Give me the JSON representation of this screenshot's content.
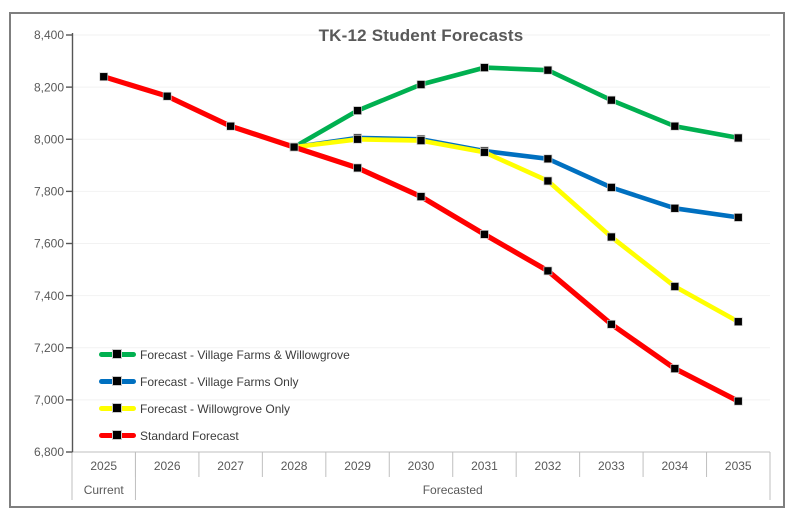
{
  "window": {
    "background_color": "#FFFFFF",
    "frame_border_color": "#7F7F7F"
  },
  "chart_data": {
    "type": "line",
    "title": "TK-12 Student Forecasts",
    "categories": [
      "2025",
      "2026",
      "2027",
      "2028",
      "2029",
      "2030",
      "2031",
      "2032",
      "2033",
      "2034",
      "2035"
    ],
    "x_axis_groups": [
      {
        "label": "Current",
        "start_index": 0,
        "end_index": 0
      },
      {
        "label": "Forecasted",
        "start_index": 1,
        "end_index": 10
      }
    ],
    "series": [
      {
        "name": "Forecast - Village Farms & Willowgrove",
        "color": "#00B050",
        "values": [
          null,
          null,
          null,
          7970,
          8110,
          8210,
          8275,
          8265,
          8150,
          8050,
          8005
        ]
      },
      {
        "name": "Forecast - Village Farms Only",
        "color": "#0070C0",
        "values": [
          null,
          null,
          null,
          7970,
          8005,
          8000,
          7955,
          7925,
          7815,
          7735,
          7700
        ]
      },
      {
        "name": "Forecast - Willowgrove Only",
        "color": "#FFFF00",
        "values": [
          null,
          null,
          null,
          7970,
          8000,
          7995,
          7950,
          7840,
          7625,
          7435,
          7300
        ]
      },
      {
        "name": "Standard Forecast",
        "color": "#FF0000",
        "values": [
          8240,
          8165,
          8050,
          7970,
          7890,
          7780,
          7635,
          7495,
          7290,
          7120,
          6995
        ]
      }
    ],
    "ylim": [
      6800,
      8400
    ],
    "ytick_step": 200,
    "ytick_labels": [
      "6,800",
      "7,000",
      "7,200",
      "7,400",
      "7,600",
      "7,800",
      "8,000",
      "8,200",
      "8,400"
    ],
    "grid": true,
    "legend_position": "inside-bottom-left",
    "marker": {
      "shape": "square",
      "color": "#000000"
    },
    "colors": {
      "gridline": "#F2F2F2",
      "axis_line": "#BFBFBF",
      "y_axis_line": "#555555",
      "tick_label": "#595959"
    }
  }
}
